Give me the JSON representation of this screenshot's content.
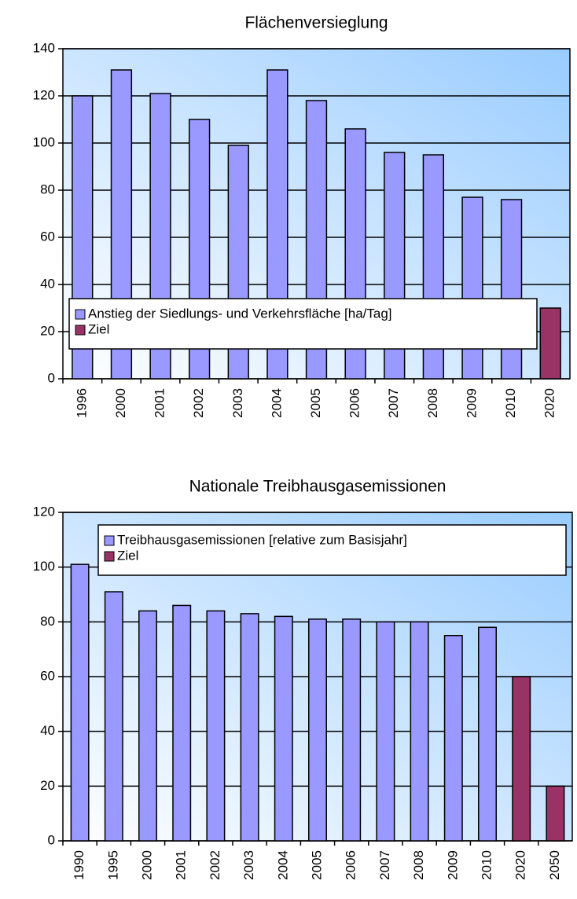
{
  "chart_data": [
    {
      "type": "bar",
      "title": "Flächenversieglung",
      "categories": [
        "1996",
        "2000",
        "2001",
        "2002",
        "2003",
        "2004",
        "2005",
        "2006",
        "2007",
        "2008",
        "2009",
        "2010",
        "2020"
      ],
      "series": [
        {
          "name": "Anstieg der Siedlungs- und Verkehrsfläche [ha/Tag]",
          "color": "#9999ff",
          "values": [
            120,
            131,
            121,
            110,
            99,
            131,
            118,
            106,
            96,
            95,
            77,
            76,
            null
          ]
        },
        {
          "name": "Ziel",
          "color": "#993366",
          "values": [
            null,
            null,
            null,
            null,
            null,
            null,
            null,
            null,
            null,
            null,
            null,
            null,
            30
          ]
        }
      ],
      "ylim": [
        0,
        140
      ],
      "yticks": [
        0,
        20,
        40,
        60,
        80,
        100,
        120,
        140
      ],
      "grid": true,
      "legend": "lower left"
    },
    {
      "type": "bar",
      "title": "Nationale Treibhausgasemissionen",
      "categories": [
        "1990",
        "1995",
        "2000",
        "2001",
        "2002",
        "2003",
        "2004",
        "2005",
        "2006",
        "2007",
        "2008",
        "2009",
        "2010",
        "2020",
        "2050"
      ],
      "series": [
        {
          "name": "Treibhausgasemissionen [relative zum Basisjahr]",
          "color": "#9999ff",
          "values": [
            101,
            91,
            84,
            86,
            84,
            83,
            82,
            81,
            81,
            80,
            80,
            75,
            78,
            null,
            null
          ]
        },
        {
          "name": "Ziel",
          "color": "#993366",
          "values": [
            null,
            null,
            null,
            null,
            null,
            null,
            null,
            null,
            null,
            null,
            null,
            null,
            null,
            60,
            20
          ]
        }
      ],
      "ylim": [
        0,
        120
      ],
      "yticks": [
        0,
        20,
        40,
        60,
        80,
        100,
        120
      ],
      "grid": true,
      "legend": "upper right"
    }
  ]
}
